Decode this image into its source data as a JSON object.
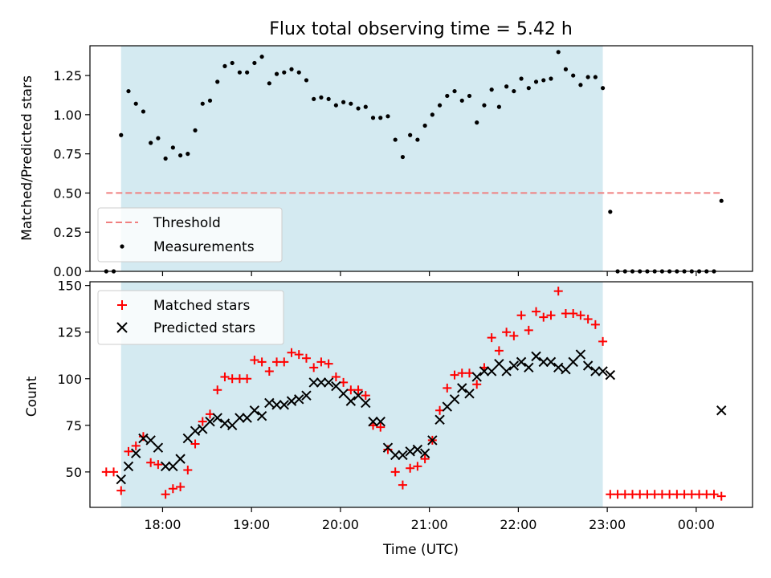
{
  "chart_data": [
    {
      "type": "scatter",
      "title": "Flux total observing time = 5.42 h",
      "xlabel": "",
      "ylabel": "Matched/Predicted stars",
      "xlim": [
        "17:11",
        "00:38"
      ],
      "ylim": [
        0,
        1.44
      ],
      "ytick_labels": [
        "0.00",
        "0.25",
        "0.50",
        "0.75",
        "1.00",
        "1.25"
      ],
      "ytick_values": [
        0,
        0.25,
        0.5,
        0.75,
        1.0,
        1.25
      ],
      "shaded_interval": [
        "17:32",
        "22:57"
      ],
      "shaded_color": "#d4eaf1",
      "threshold": {
        "name": "Threshold",
        "value": 0.5,
        "x_start": "17:22",
        "x_end": "00:17",
        "color": "#f08080"
      },
      "legend": {
        "placement": "lower-left",
        "entries": [
          "Threshold",
          "Measurements"
        ]
      },
      "series": [
        {
          "name": "Measurements",
          "color": "#000000",
          "x": [
            "17:22",
            "17:27",
            "17:32",
            "17:37",
            "17:42",
            "17:47",
            "17:52",
            "17:57",
            "18:02",
            "18:07",
            "18:12",
            "18:17",
            "18:22",
            "18:27",
            "18:32",
            "18:37",
            "18:42",
            "18:47",
            "18:52",
            "18:57",
            "19:02",
            "19:07",
            "19:12",
            "19:17",
            "19:22",
            "19:27",
            "19:32",
            "19:37",
            "19:42",
            "19:47",
            "19:52",
            "19:57",
            "20:02",
            "20:07",
            "20:12",
            "20:17",
            "20:22",
            "20:27",
            "20:32",
            "20:37",
            "20:42",
            "20:47",
            "20:52",
            "20:57",
            "21:02",
            "21:07",
            "21:12",
            "21:17",
            "21:22",
            "21:27",
            "21:32",
            "21:37",
            "21:42",
            "21:47",
            "21:52",
            "21:57",
            "22:02",
            "22:07",
            "22:12",
            "22:17",
            "22:22",
            "22:27",
            "22:32",
            "22:37",
            "22:42",
            "22:47",
            "22:52",
            "22:57",
            "23:02",
            "23:07",
            "23:12",
            "23:17",
            "23:22",
            "23:27",
            "23:32",
            "23:37",
            "23:42",
            "23:47",
            "23:52",
            "23:57",
            "00:02",
            "00:07",
            "00:12",
            "00:17"
          ],
          "y": [
            0.0,
            0.0,
            0.87,
            1.15,
            1.07,
            1.02,
            0.82,
            0.85,
            0.72,
            0.79,
            0.74,
            0.75,
            0.9,
            1.07,
            1.09,
            1.21,
            1.31,
            1.33,
            1.27,
            1.27,
            1.33,
            1.37,
            1.2,
            1.26,
            1.27,
            1.29,
            1.27,
            1.22,
            1.1,
            1.11,
            1.1,
            1.06,
            1.08,
            1.07,
            1.04,
            1.05,
            0.98,
            0.98,
            0.99,
            0.84,
            0.73,
            0.87,
            0.84,
            0.93,
            1.0,
            1.06,
            1.12,
            1.15,
            1.09,
            1.12,
            0.95,
            1.06,
            1.16,
            1.05,
            1.18,
            1.15,
            1.23,
            1.17,
            1.21,
            1.22,
            1.23,
            1.4,
            1.29,
            1.25,
            1.19,
            1.24,
            1.24,
            1.17,
            0.38,
            0.0,
            0.0,
            0.0,
            0.0,
            0.0,
            0.0,
            0.0,
            0.0,
            0.0,
            0.0,
            0.0,
            0.0,
            0.0,
            0.0,
            0.45
          ]
        }
      ]
    },
    {
      "type": "scatter",
      "title": "",
      "xlabel": "Time (UTC)",
      "ylabel": "Count",
      "xlim": [
        "17:11",
        "00:38"
      ],
      "ylim": [
        31,
        152
      ],
      "ytick_labels": [
        "50",
        "75",
        "100",
        "125",
        "150"
      ],
      "ytick_values": [
        50,
        75,
        100,
        125,
        150
      ],
      "xtick_labels": [
        "18:00",
        "19:00",
        "20:00",
        "21:00",
        "22:00",
        "23:00",
        "00:00"
      ],
      "shaded_interval": [
        "17:32",
        "22:57"
      ],
      "shaded_color": "#d4eaf1",
      "legend": {
        "placement": "upper-left",
        "entries": [
          "Matched stars",
          "Predicted stars"
        ]
      },
      "series": [
        {
          "name": "Matched stars",
          "marker": "plus",
          "color": "#ff0000",
          "x": [
            "17:22",
            "17:27",
            "17:32",
            "17:37",
            "17:42",
            "17:47",
            "17:52",
            "17:57",
            "18:02",
            "18:07",
            "18:12",
            "18:17",
            "18:22",
            "18:27",
            "18:32",
            "18:37",
            "18:42",
            "18:47",
            "18:52",
            "18:57",
            "19:02",
            "19:07",
            "19:12",
            "19:17",
            "19:22",
            "19:27",
            "19:32",
            "19:37",
            "19:42",
            "19:47",
            "19:52",
            "19:57",
            "20:02",
            "20:07",
            "20:12",
            "20:17",
            "20:22",
            "20:27",
            "20:32",
            "20:37",
            "20:42",
            "20:47",
            "20:52",
            "20:57",
            "21:02",
            "21:07",
            "21:12",
            "21:17",
            "21:22",
            "21:27",
            "21:32",
            "21:37",
            "21:42",
            "21:47",
            "21:52",
            "21:57",
            "22:02",
            "22:07",
            "22:12",
            "22:17",
            "22:22",
            "22:27",
            "22:32",
            "22:37",
            "22:42",
            "22:47",
            "22:52",
            "22:57",
            "23:02",
            "23:07",
            "23:12",
            "23:17",
            "23:22",
            "23:27",
            "23:32",
            "23:37",
            "23:42",
            "23:47",
            "23:52",
            "23:57",
            "00:02",
            "00:07",
            "00:12",
            "00:17"
          ],
          "y": [
            50,
            50,
            40,
            61,
            64,
            69,
            55,
            54,
            38,
            41,
            42,
            51,
            65,
            77,
            81,
            94,
            101,
            100,
            100,
            100,
            110,
            109,
            104,
            109,
            109,
            114,
            113,
            111,
            106,
            109,
            108,
            101,
            98,
            94,
            94,
            91,
            75,
            74,
            62,
            50,
            43,
            52,
            53,
            57,
            67,
            83,
            95,
            102,
            103,
            103,
            97,
            106,
            122,
            115,
            125,
            123,
            134,
            126,
            136,
            133,
            134,
            147,
            135,
            135,
            134,
            132,
            129,
            120,
            38,
            38,
            38,
            38,
            38,
            38,
            38,
            38,
            38,
            38,
            38,
            38,
            38,
            38,
            38,
            37
          ]
        },
        {
          "name": "Predicted stars",
          "marker": "x",
          "color": "#000000",
          "x": [
            "17:32",
            "17:37",
            "17:42",
            "17:47",
            "17:52",
            "17:57",
            "18:02",
            "18:07",
            "18:12",
            "18:17",
            "18:22",
            "18:27",
            "18:32",
            "18:37",
            "18:42",
            "18:47",
            "18:52",
            "18:57",
            "19:02",
            "19:07",
            "19:12",
            "19:17",
            "19:22",
            "19:27",
            "19:32",
            "19:37",
            "19:42",
            "19:47",
            "19:52",
            "19:57",
            "20:02",
            "20:07",
            "20:12",
            "20:17",
            "20:22",
            "20:27",
            "20:32",
            "20:37",
            "20:42",
            "20:47",
            "20:52",
            "20:57",
            "21:02",
            "21:07",
            "21:12",
            "21:17",
            "21:22",
            "21:27",
            "21:32",
            "21:37",
            "21:42",
            "21:47",
            "21:52",
            "21:57",
            "22:02",
            "22:07",
            "22:12",
            "22:17",
            "22:22",
            "22:27",
            "22:32",
            "22:37",
            "22:42",
            "22:47",
            "22:52",
            "22:57",
            "23:02",
            "00:17"
          ],
          "y": [
            46,
            53,
            60,
            68,
            67,
            63,
            53,
            53,
            57,
            68,
            72,
            73,
            77,
            79,
            76,
            75,
            79,
            79,
            83,
            80,
            87,
            86,
            86,
            88,
            89,
            91,
            98,
            98,
            98,
            96,
            92,
            88,
            91,
            87,
            77,
            77,
            63,
            59,
            59,
            61,
            62,
            60,
            67,
            78,
            85,
            89,
            95,
            92,
            101,
            104,
            104,
            108,
            104,
            107,
            109,
            106,
            112,
            109,
            109,
            106,
            105,
            109,
            113,
            107,
            104,
            104,
            102,
            83
          ]
        }
      ]
    }
  ]
}
